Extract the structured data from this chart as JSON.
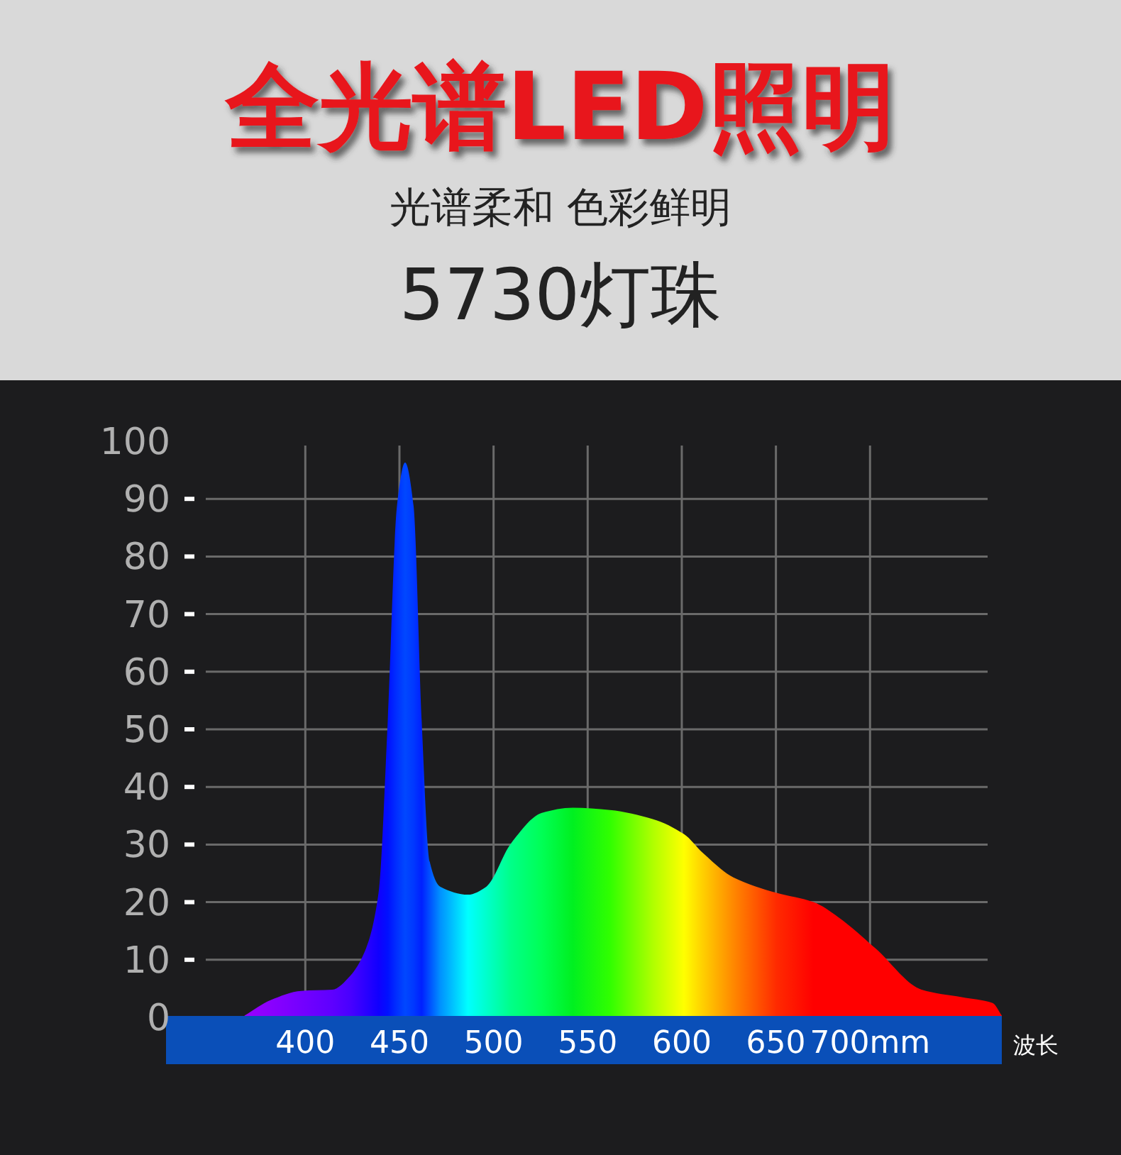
{
  "chart_data": {
    "type": "area",
    "title": "全光谱LED照明",
    "subtitle": "光谱柔和 色彩鲜明",
    "annotations": [
      "5730灯珠"
    ],
    "xlabel": "波长",
    "x": [
      367.7,
      381.5,
      397.9,
      414.3,
      424.1,
      432.3,
      438.9,
      443.8,
      448.7,
      453.0,
      457.5,
      461.8,
      466.1,
      471.6,
      486.4,
      496.2,
      509.3,
      525.7,
      542.1,
      561.8,
      584.8,
      601.2,
      611.0,
      627.4,
      650.4,
      670.0,
      683.1,
      702.8,
      727.4,
      748.7,
      765.1,
      770.0
    ],
    "series": [
      {
        "values": [
          0.3,
          3.0,
          4.6,
          4.8,
          7.3,
          12.0,
          21.6,
          51.5,
          88.8,
          96.3,
          88.8,
          51.5,
          27.0,
          22.7,
          21.3,
          22.7,
          30.2,
          35.5,
          36.4,
          36.0,
          34.4,
          31.8,
          28.6,
          24.3,
          21.6,
          20.0,
          17.4,
          12.0,
          4.8,
          3.5,
          2.5,
          0.3
        ],
        "colors": [
          "#9900ff",
          "#8a00ff",
          "#7400ff",
          "#5e00ff",
          "#4800ff",
          "#2a00ff",
          "#1000ff",
          "#0010ff",
          "#0030ff",
          "#0048ff",
          "#0038ff",
          "#0020ff",
          "#0050ff",
          "#0090ff",
          "#00ffff",
          "#00ffcc",
          "#00ff88",
          "#00ff55",
          "#00f020",
          "#30ff00",
          "#b0ff00",
          "#ffff00",
          "#ffd000",
          "#ff8800",
          "#ff2a00",
          "#ff0000",
          "#ff0000",
          "#ff0000",
          "#ff0000",
          "#ff0000",
          "#ff0000",
          "#ff0000"
        ]
      }
    ],
    "xlim": [
      326,
      770
    ],
    "xticks": [
      400,
      450,
      500,
      550,
      600,
      650,
      {
        "value": 700,
        "label": "700mm"
      }
    ],
    "ylim": [
      0,
      100
    ],
    "yticks": [
      0,
      10,
      20,
      30,
      40,
      50,
      60,
      70,
      80,
      90,
      100
    ],
    "grid": true
  }
}
